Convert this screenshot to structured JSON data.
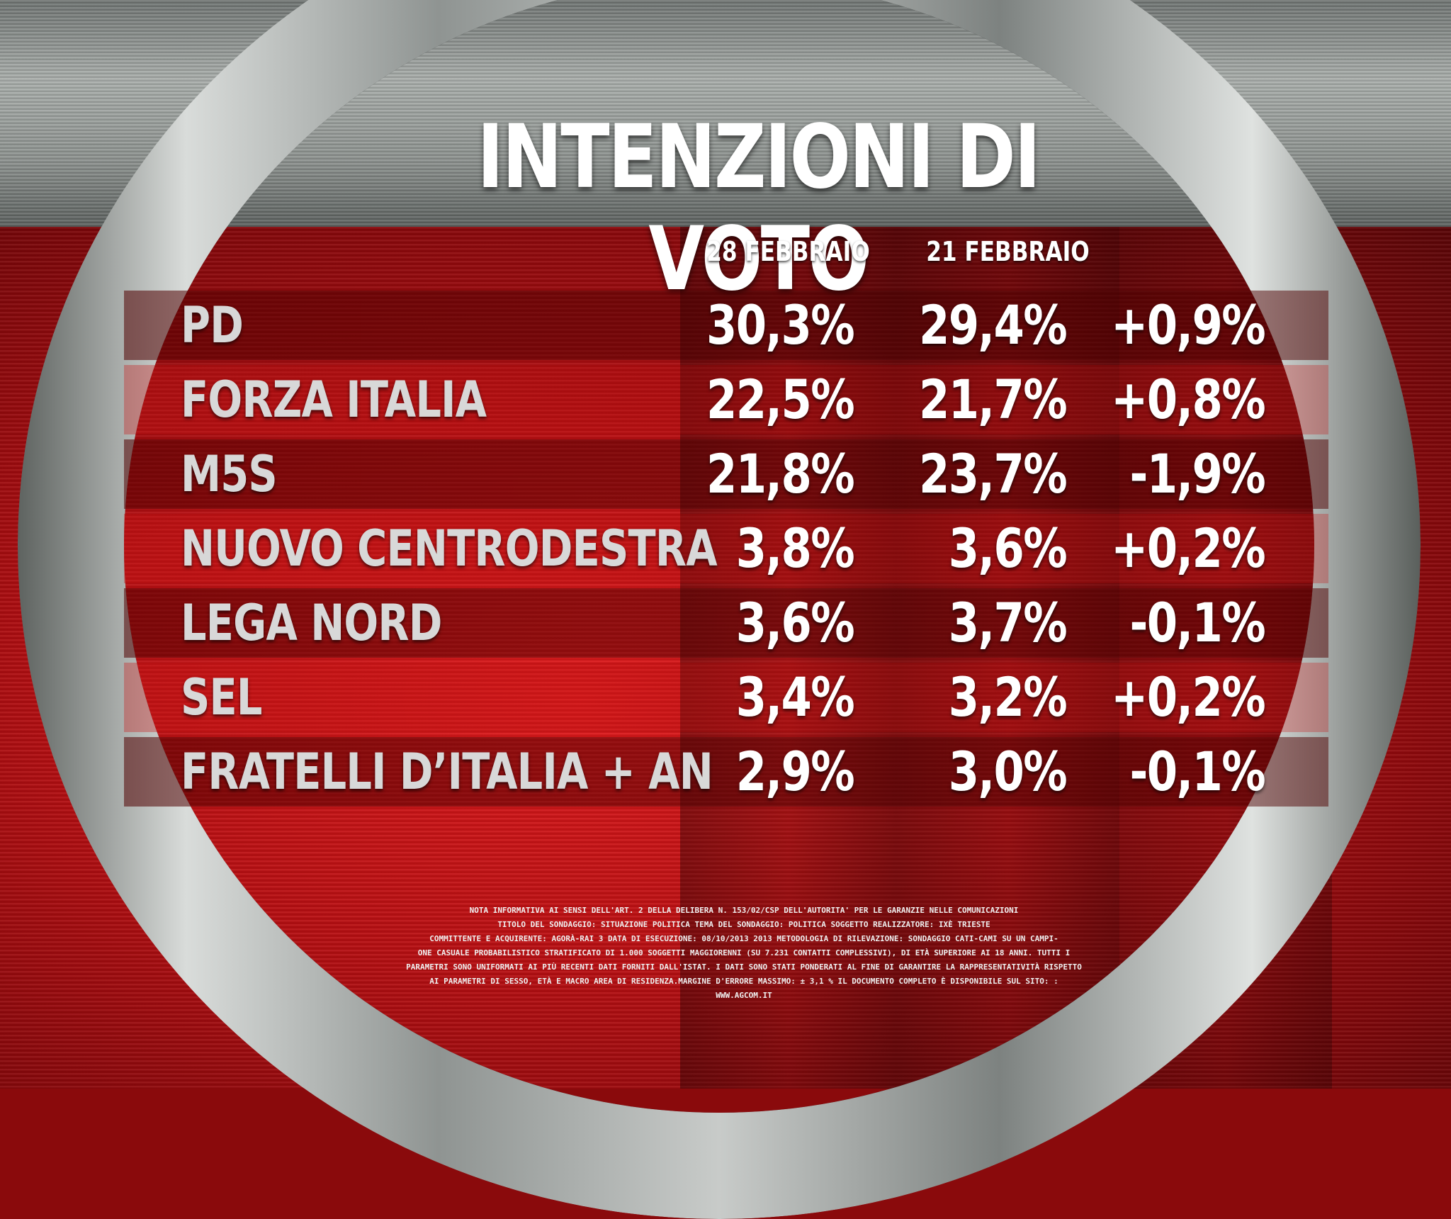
{
  "title": "INTENZIONI DI VOTO",
  "columns": {
    "col1": "28 FEBBRAIO",
    "col2": "21 FEBBRAIO"
  },
  "rows": [
    {
      "party": "PD",
      "feb28": "30,3%",
      "feb21": "29,4%",
      "diff": "+0,9%"
    },
    {
      "party": "FORZA ITALIA",
      "feb28": "22,5%",
      "feb21": "21,7%",
      "diff": "+0,8%"
    },
    {
      "party": "M5S",
      "feb28": "21,8%",
      "feb21": "23,7%",
      "diff": "-1,9%"
    },
    {
      "party": "NUOVO CENTRODESTRA",
      "feb28": "3,8%",
      "feb21": "3,6%",
      "diff": "+0,2%"
    },
    {
      "party": "LEGA NORD",
      "feb28": "3,6%",
      "feb21": "3,7%",
      "diff": "-0,1%"
    },
    {
      "party": "SEL",
      "feb28": "3,4%",
      "feb21": "3,2%",
      "diff": "+0,2%"
    },
    {
      "party": "FRATELLI D’ITALIA + AN",
      "feb28": "2,9%",
      "feb21": "3,0%",
      "diff": "-0,1%"
    }
  ],
  "footnote": {
    "line1": "NOTA INFORMATIVA AI SENSI DELL'ART. 2 DELLA DELIBERA N. 153/02/CSP DELL'AUTORITA' PER LE GARANZIE NELLE COMUNICAZIONI",
    "line2": "TITOLO DEL SONDAGGIO: SITUAZIONE POLITICA TEMA DEL SONDAGGIO: POLITICA SOGGETTO REALIZZATORE: IXÈ TRIESTE",
    "line3": "COMMITTENTE E ACQUIRENTE: AGORÀ-RAI 3 DATA DI ESECUZIONE: 08/10/2013 2013 METODOLOGIA DI RILEVAZIONE: SONDAGGIO CATI-CAMI SU UN CAMPI-",
    "line4": "ONE CASUALE PROBABILISTICO STRATIFICATO DI 1.000 SOGGETTI MAGGIORENNI (SU 7.231 CONTATTI COMPLESSIVI), DI ETÀ SUPERIORE AI 18 ANNI. TUTTI I",
    "line5": "PARAMETRI SONO UNIFORMATI AI PIÙ RECENTI DATI FORNITI DALL'ISTAT. I DATI SONO STATI PONDERATI AL FINE DI GARANTIRE LA RAPPRESENTATIVITÀ RISPETTO",
    "line6": "AI PARAMETRI DI SESSO, ETÀ E MACRO AREA DI RESIDENZA.MARGINE D'ERRORE MASSIMO: ± 3,1 % IL DOCUMENTO COMPLETO È DISPONIBILE SUL SITO: :",
    "line7": "WWW.AGCOM.IT"
  }
}
